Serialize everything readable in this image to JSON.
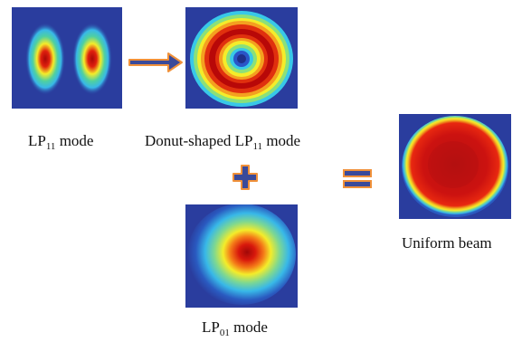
{
  "modes": {
    "lp11": {
      "prefix": "LP",
      "subscript": "11",
      "suffix": " mode"
    },
    "donut": {
      "prefix": "Donut-shaped LP",
      "subscript": "11",
      "suffix": " mode"
    },
    "lp01": {
      "prefix": "LP",
      "subscript": "01",
      "suffix": " mode"
    },
    "uniform": {
      "label": "Uniform beam"
    }
  },
  "operators": {
    "arrow": "arrow-icon",
    "plus": "plus-icon",
    "equals": "equals-icon"
  },
  "colors": {
    "background": "#2a3d9e",
    "arrow_fill": "#3a4a9a",
    "arrow_outline": "#f0913a",
    "field_red": "#c40a0a",
    "field_yellow": "#f4ec2a",
    "field_cyan": "#38c8e8"
  }
}
